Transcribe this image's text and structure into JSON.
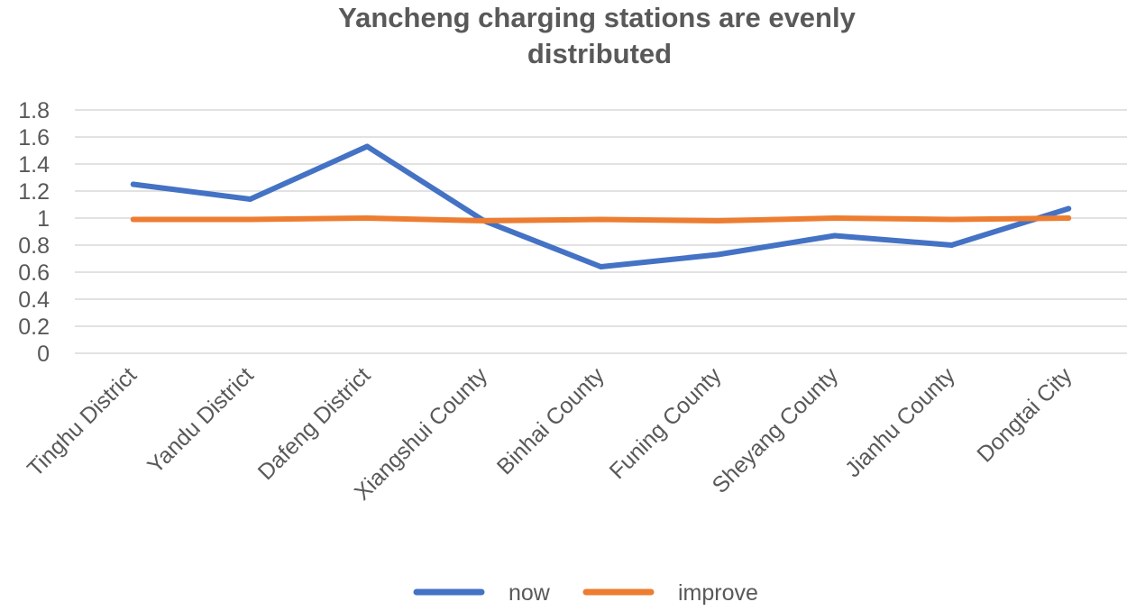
{
  "chart_data": {
    "type": "line",
    "title_lines": [
      "Yancheng charging stations are evenly",
      "distributed"
    ],
    "categories": [
      "Tinghu District",
      "Yandu District",
      "Dafeng District",
      "Xiangshui County",
      "Binhai County",
      "Funing County",
      "Sheyang County",
      "Jianhu County",
      "Dongtai City"
    ],
    "series": [
      {
        "name": "now",
        "color": "#4472c4",
        "values": [
          1.25,
          1.14,
          1.53,
          0.98,
          0.64,
          0.73,
          0.87,
          0.8,
          1.07
        ]
      },
      {
        "name": "improve",
        "color": "#ed7d31",
        "values": [
          0.99,
          0.99,
          1.0,
          0.98,
          0.99,
          0.98,
          1.0,
          0.99,
          1.0
        ]
      }
    ],
    "ylim": [
      0,
      1.8
    ],
    "yticks": [
      "0",
      "0.2",
      "0.4",
      "0.6",
      "0.8",
      "1",
      "1.2",
      "1.4",
      "1.6",
      "1.8"
    ],
    "grid": true,
    "legend_position": "bottom"
  }
}
